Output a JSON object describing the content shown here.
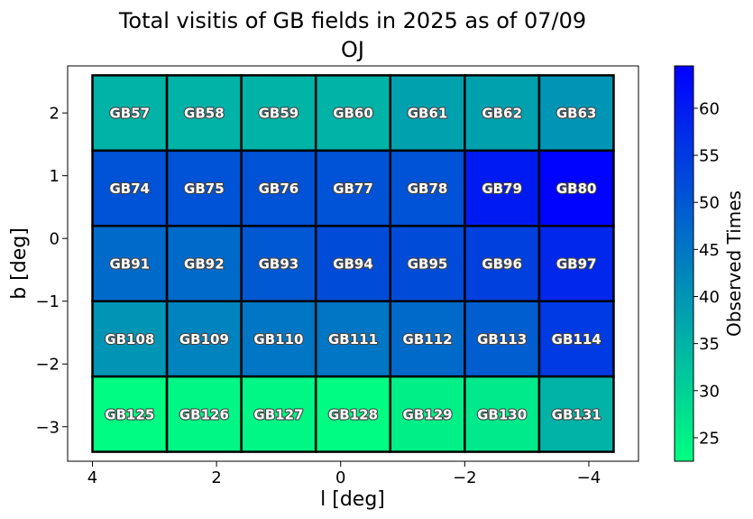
{
  "chart_data": {
    "type": "heatmap",
    "title": "Total visitis of GB fields in 2025 as of 07/09",
    "subtitle": "OJ",
    "xlabel": "l [deg]",
    "ylabel": "b [deg]",
    "xlim": [
      4.4,
      -4.8
    ],
    "ylim": [
      -3.55,
      2.75
    ],
    "x_direction": "reversed",
    "xticks": [
      4,
      2,
      0,
      -2,
      -4
    ],
    "xtick_labels": [
      "4",
      "2",
      "0",
      "−2",
      "−4"
    ],
    "yticks": [
      2,
      1,
      0,
      -1,
      -2,
      -3
    ],
    "ytick_labels": [
      "2",
      "1",
      "0",
      "−1",
      "−2",
      "−3"
    ],
    "grid": false,
    "colorbar": {
      "label": "Observed Times",
      "min": 22.5,
      "max": 64.5,
      "ticks": [
        25,
        30,
        35,
        40,
        45,
        50,
        55,
        60
      ],
      "colormap": "winter_r",
      "color_low": "#00ff80",
      "color_high": "#0000ff"
    },
    "field_size_deg": [
      1.2,
      1.2
    ],
    "rows": [
      {
        "b": 2.0,
        "fields": [
          {
            "name": "GB57",
            "l": 3.4,
            "value": 35
          },
          {
            "name": "GB58",
            "l": 2.2,
            "value": 35
          },
          {
            "name": "GB59",
            "l": 1.0,
            "value": 35
          },
          {
            "name": "GB60",
            "l": -0.2,
            "value": 35
          },
          {
            "name": "GB61",
            "l": -1.4,
            "value": 38
          },
          {
            "name": "GB62",
            "l": -2.6,
            "value": 38
          },
          {
            "name": "GB63",
            "l": -3.8,
            "value": 40
          }
        ]
      },
      {
        "b": 0.8,
        "fields": [
          {
            "name": "GB74",
            "l": 3.4,
            "value": 51
          },
          {
            "name": "GB75",
            "l": 2.2,
            "value": 51
          },
          {
            "name": "GB76",
            "l": 1.0,
            "value": 51
          },
          {
            "name": "GB77",
            "l": -0.2,
            "value": 51
          },
          {
            "name": "GB78",
            "l": -1.4,
            "value": 51
          },
          {
            "name": "GB79",
            "l": -2.6,
            "value": 60
          },
          {
            "name": "GB80",
            "l": -3.8,
            "value": 64
          }
        ]
      },
      {
        "b": -0.4,
        "fields": [
          {
            "name": "GB91",
            "l": 3.4,
            "value": 47
          },
          {
            "name": "GB92",
            "l": 2.2,
            "value": 47
          },
          {
            "name": "GB93",
            "l": 1.0,
            "value": 50
          },
          {
            "name": "GB94",
            "l": -0.2,
            "value": 52
          },
          {
            "name": "GB95",
            "l": -1.4,
            "value": 52
          },
          {
            "name": "GB96",
            "l": -2.6,
            "value": 54
          },
          {
            "name": "GB97",
            "l": -3.8,
            "value": 58
          }
        ]
      },
      {
        "b": -1.6,
        "fields": [
          {
            "name": "GB108",
            "l": 3.4,
            "value": 40
          },
          {
            "name": "GB109",
            "l": 2.2,
            "value": 43
          },
          {
            "name": "GB110",
            "l": 1.0,
            "value": 45
          },
          {
            "name": "GB111",
            "l": -0.2,
            "value": 45
          },
          {
            "name": "GB112",
            "l": -1.4,
            "value": 47
          },
          {
            "name": "GB113",
            "l": -2.6,
            "value": 49
          },
          {
            "name": "GB114",
            "l": -3.8,
            "value": 55
          }
        ]
      },
      {
        "b": -2.8,
        "fields": [
          {
            "name": "GB125",
            "l": 3.4,
            "value": 23
          },
          {
            "name": "GB126",
            "l": 2.2,
            "value": 24
          },
          {
            "name": "GB127",
            "l": 1.0,
            "value": 24
          },
          {
            "name": "GB128",
            "l": -0.2,
            "value": 23
          },
          {
            "name": "GB129",
            "l": -1.4,
            "value": 25
          },
          {
            "name": "GB130",
            "l": -2.6,
            "value": 26
          },
          {
            "name": "GB131",
            "l": -3.8,
            "value": 35
          }
        ]
      }
    ]
  }
}
